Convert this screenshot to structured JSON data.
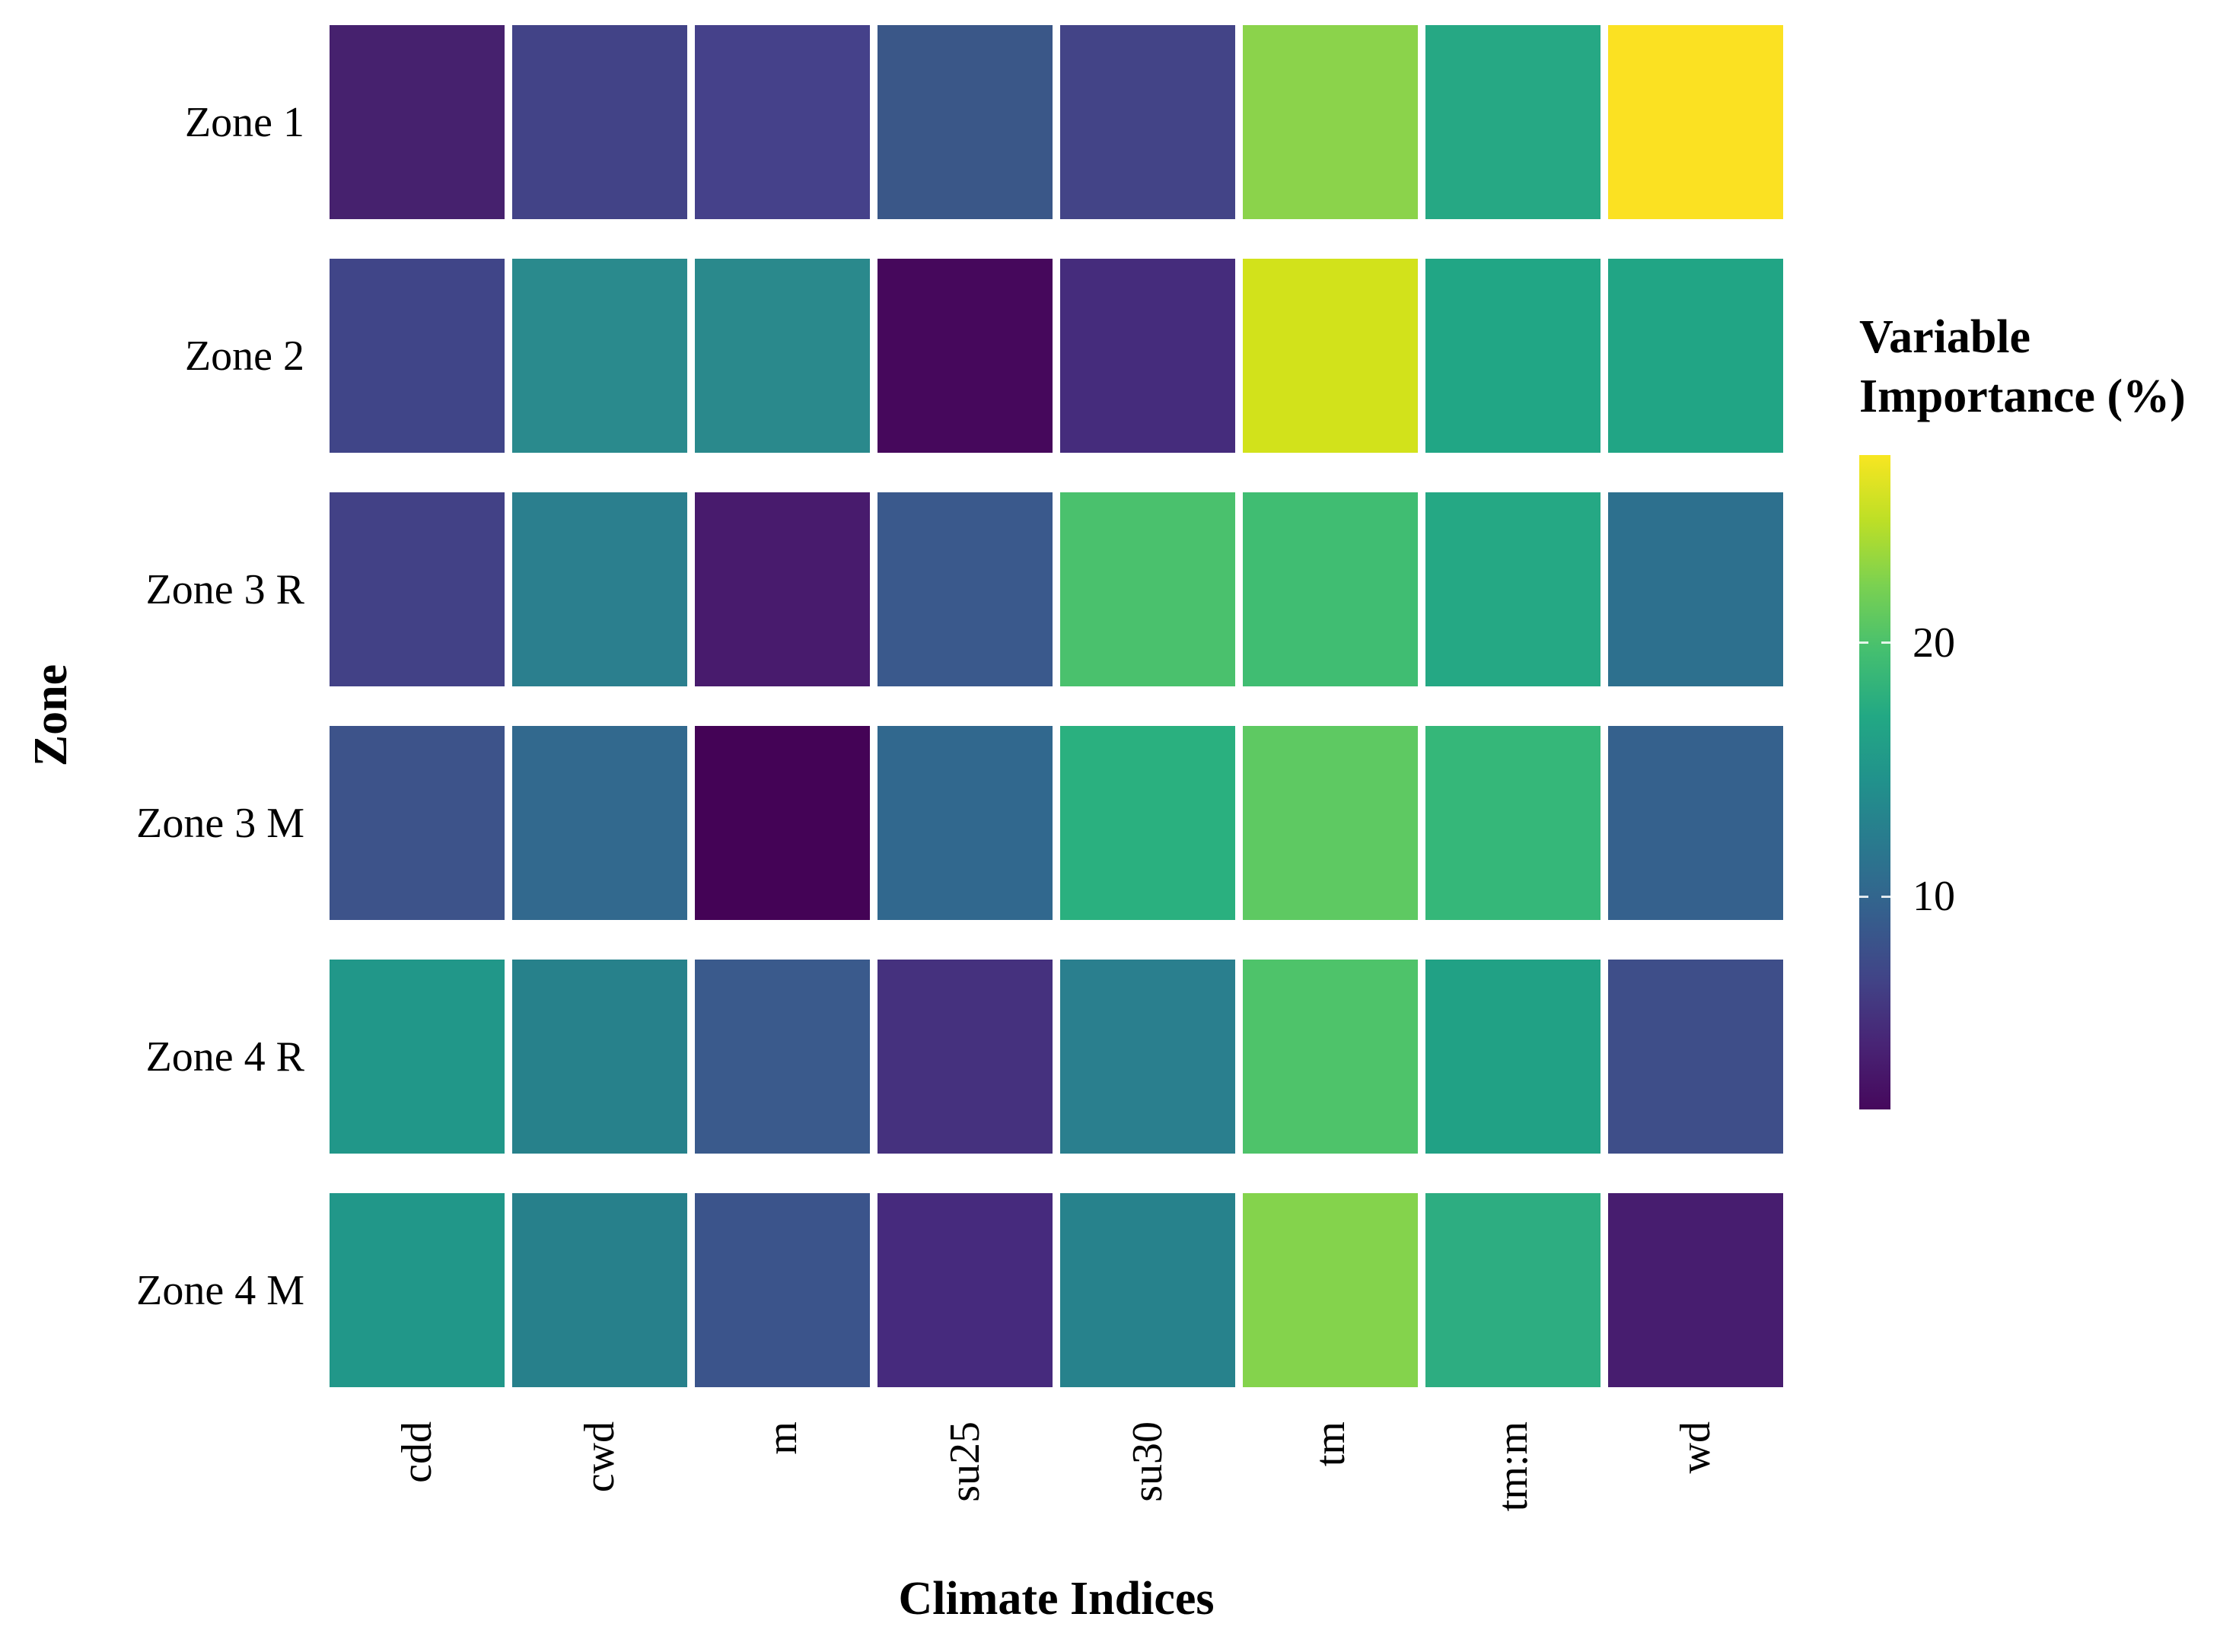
{
  "chart_data": {
    "type": "heatmap",
    "title": "",
    "xlabel": "Climate Indices",
    "ylabel": "Zone",
    "columns": [
      "cdd",
      "cwd",
      "m",
      "su25",
      "su30",
      "tm",
      "tm:m",
      "wd"
    ],
    "rows": [
      "Zone 1",
      "Zone 2",
      "Zone 3 R",
      "Zone 3 M",
      "Zone 4 R",
      "Zone 4 M"
    ],
    "values_percent_estimated": [
      [
        4.3,
        6.9,
        6.7,
        8.9,
        6.9,
        23.1,
        17.3,
        27.4
      ],
      [
        7.3,
        13.9,
        13.9,
        2.6,
        5.1,
        25.6,
        17.1,
        17.1
      ],
      [
        6.8,
        12.9,
        3.8,
        9.0,
        20.2,
        19.5,
        17.3,
        11.3
      ],
      [
        8.3,
        10.4,
        1.9,
        10.4,
        18.3,
        21.4,
        19.0,
        9.8
      ],
      [
        15.4,
        13.1,
        9.0,
        5.5,
        12.9,
        20.5,
        16.4,
        7.9
      ],
      [
        15.4,
        13.0,
        8.5,
        5.0,
        13.2,
        22.9,
        17.9,
        3.9
      ]
    ],
    "cell_colors": [
      [
        "#46216e",
        "#424387",
        "#45418a",
        "#3a5788",
        "#434487",
        "#8bd34b",
        "#26a884",
        "#fbe122"
      ],
      [
        "#404588",
        "#2a8a8d",
        "#2a898c",
        "#46085c",
        "#452c7c",
        "#d2e21b",
        "#21a685",
        "#21a585"
      ],
      [
        "#424186",
        "#2b7f8e",
        "#481b6d",
        "#3a598c",
        "#4ac16d",
        "#40bd72",
        "#25a884",
        "#2d708e"
      ],
      [
        "#3d538a",
        "#32698e",
        "#440356",
        "#31688e",
        "#2ab07f",
        "#5ec962",
        "#35b779",
        "#35618d"
      ],
      [
        "#219789",
        "#27818b",
        "#3a5a8c",
        "#45317e",
        "#2a7f8e",
        "#4ec36a",
        "#21a185",
        "#3e4e89"
      ],
      [
        "#219789",
        "#27808b",
        "#3b548b",
        "#462a7d",
        "#27828c",
        "#84d34c",
        "#2dad81",
        "#471d6f"
      ]
    ],
    "legend": {
      "title_lines": [
        "Variable",
        "Importance (%)"
      ],
      "ticks": [
        10,
        20
      ],
      "domain": [
        1.6,
        27.4
      ],
      "gradient_bottom_to_top": [
        "#46085c",
        "#482475",
        "#414487",
        "#355f8d",
        "#2a788e",
        "#21918c",
        "#22a884",
        "#44bf70",
        "#7ad151",
        "#bddf26",
        "#f8e621"
      ]
    },
    "legend_position": "right",
    "grid": false,
    "background_color": "#ffffff",
    "x_tick_rotation_deg": 90
  }
}
